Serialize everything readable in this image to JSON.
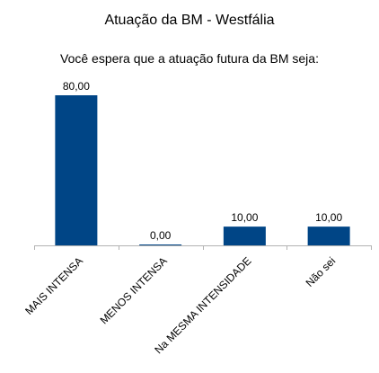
{
  "chart_data": {
    "type": "bar",
    "title": "Atuação da BM - Westfália",
    "subtitle": "Você espera que a atuação futura da BM seja:",
    "categories": [
      "MAIS INTENSA",
      "MENOS INTENSA",
      "Na MESMA INTENSIDADE",
      "Não sei"
    ],
    "values": [
      80,
      0,
      10,
      10
    ],
    "data_labels": [
      "80,00",
      "0,00",
      "10,00",
      "10,00"
    ],
    "xlabel": "",
    "ylabel": "",
    "ylim": [
      0,
      80
    ],
    "grid": false,
    "legend": "none",
    "bar_color": "#004586",
    "axis_color": "#b3b3b3"
  }
}
